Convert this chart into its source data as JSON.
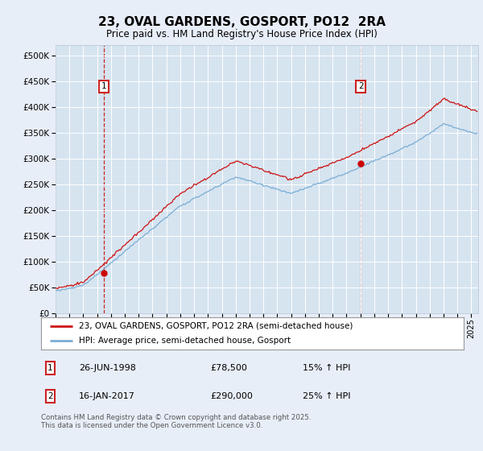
{
  "title": "23, OVAL GARDENS, GOSPORT, PO12  2RA",
  "subtitle": "Price paid vs. HM Land Registry's House Price Index (HPI)",
  "background_color": "#e8eef8",
  "plot_bg_color": "#d6e4f0",
  "legend_entry1": "23, OVAL GARDENS, GOSPORT, PO12 2RA (semi-detached house)",
  "legend_entry2": "HPI: Average price, semi-detached house, Gosport",
  "sale1_label": "1",
  "sale1_date": "26-JUN-1998",
  "sale1_price": "£78,500",
  "sale1_hpi": "15% ↑ HPI",
  "sale2_label": "2",
  "sale2_date": "16-JAN-2017",
  "sale2_price": "£290,000",
  "sale2_hpi": "25% ↑ HPI",
  "sale1_year": 1998.49,
  "sale1_value": 78500,
  "sale2_year": 2017.04,
  "sale2_value": 290000,
  "vline_color": "#cc0000",
  "sale_marker_color": "#cc0000",
  "hpi_color": "#7aadd4",
  "price_color": "#cc1111",
  "ylim": [
    0,
    520000
  ],
  "xlim_start": 1995.0,
  "xlim_end": 2025.5,
  "yticks": [
    0,
    50000,
    100000,
    150000,
    200000,
    250000,
    300000,
    350000,
    400000,
    450000,
    500000
  ],
  "footer": "Contains HM Land Registry data © Crown copyright and database right 2025.\nThis data is licensed under the Open Government Licence v3.0.",
  "box_color": "#cc2222"
}
